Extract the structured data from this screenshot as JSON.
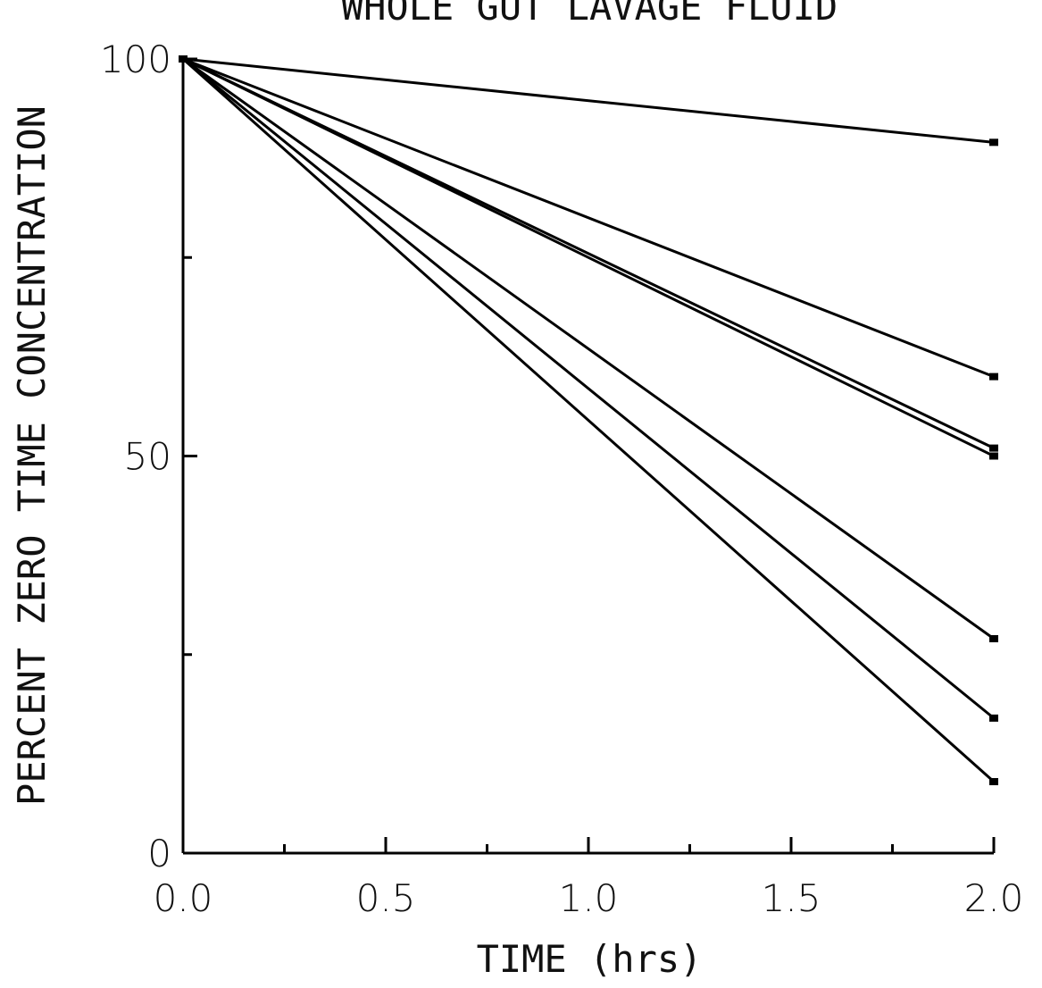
{
  "chart_data": {
    "type": "line",
    "title": "WHOLE GUT LAVAGE FLUID",
    "xlabel": "TIME (hrs)",
    "ylabel": "PERCENT ZERO TIME CONCENTRATION",
    "xlim": [
      0,
      2
    ],
    "ylim": [
      0,
      100
    ],
    "x_ticks": [
      0,
      0.5,
      1.0,
      1.5,
      2.0
    ],
    "x_tick_labels": [
      "0.0",
      "0.5",
      "1.0",
      "1.5",
      "2.0"
    ],
    "x_minor_ticks": [
      0.25,
      0.75,
      1.25,
      1.75
    ],
    "y_ticks": [
      0,
      50,
      100
    ],
    "y_tick_labels": [
      "0",
      "50",
      "100"
    ],
    "y_minor_ticks": [
      25,
      75
    ],
    "grid": false,
    "x": [
      0,
      2
    ],
    "series": [
      {
        "values": [
          100,
          89.5
        ]
      },
      {
        "values": [
          100,
          60
        ]
      },
      {
        "values": [
          100,
          51
        ]
      },
      {
        "values": [
          100,
          50
        ]
      },
      {
        "values": [
          100,
          27
        ]
      },
      {
        "values": [
          100,
          17
        ]
      },
      {
        "values": [
          100,
          9
        ]
      }
    ]
  }
}
